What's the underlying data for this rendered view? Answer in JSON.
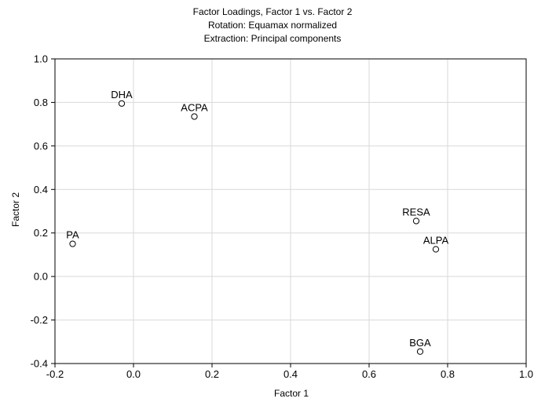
{
  "chart_data": {
    "type": "scatter",
    "title": [
      "Factor Loadings, Factor 1 vs. Factor 2",
      "Rotation: Equamax normalized",
      "Extraction: Principal components"
    ],
    "xlabel": "Factor 1",
    "ylabel": "Factor 2",
    "xlim": [
      -0.2,
      1.0
    ],
    "ylim": [
      -0.4,
      1.0
    ],
    "xticks": [
      "-0.2",
      "0.0",
      "0.2",
      "0.4",
      "0.6",
      "0.8",
      "1.0"
    ],
    "yticks": [
      "-0.4",
      "-0.2",
      "0.0",
      "0.2",
      "0.4",
      "0.6",
      "0.8",
      "1.0"
    ],
    "grid": true,
    "points": [
      {
        "label": "DHA",
        "x": -0.03,
        "y": 0.795
      },
      {
        "label": "ACPA",
        "x": 0.155,
        "y": 0.735
      },
      {
        "label": "PA",
        "x": -0.155,
        "y": 0.15
      },
      {
        "label": "RESA",
        "x": 0.72,
        "y": 0.255
      },
      {
        "label": "ALPA",
        "x": 0.77,
        "y": 0.125
      },
      {
        "label": "BGA",
        "x": 0.73,
        "y": -0.345
      }
    ]
  }
}
